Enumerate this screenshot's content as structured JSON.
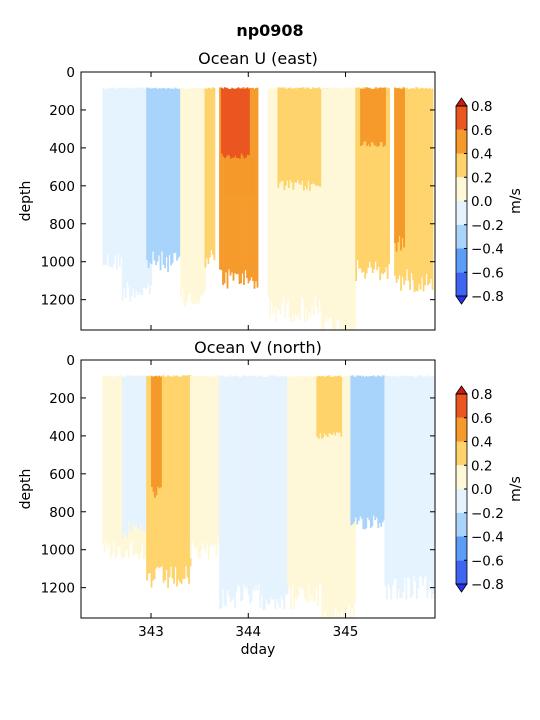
{
  "figure_title": "np0908",
  "chart_data": [
    {
      "type": "heatmap",
      "title": "Ocean U (east)",
      "xlabel": "",
      "ylabel": "depth",
      "xlim": [
        342.28,
        345.92
      ],
      "ylim": [
        1360,
        0
      ],
      "y_inverted": true,
      "xticks": [
        343,
        344,
        345
      ],
      "xticklabels_visible": false,
      "yticks": [
        0,
        200,
        400,
        600,
        800,
        1000,
        1200
      ],
      "colorbar": {
        "label": "m/s",
        "levels": [
          -0.8,
          -0.6,
          -0.4,
          -0.2,
          0.0,
          0.2,
          0.4,
          0.6,
          0.8
        ],
        "ticklabels": [
          "−0.8",
          "−0.6",
          "−0.4",
          "−0.2",
          "0.0",
          "0.2",
          "0.4",
          "0.6",
          "0.8"
        ],
        "extend": "both"
      },
      "sections": [
        {
          "x0": 342.5,
          "x1": 342.7,
          "d0": 80,
          "d1": 1000,
          "v": -0.1
        },
        {
          "x0": 342.7,
          "x1": 343.0,
          "d0": 80,
          "d1": 1150,
          "v": -0.1
        },
        {
          "x0": 342.95,
          "x1": 343.3,
          "d0": 80,
          "d1": 1000,
          "v": -0.3
        },
        {
          "x0": 343.3,
          "x1": 343.55,
          "d0": 80,
          "d1": 1200,
          "v": 0.1
        },
        {
          "x0": 343.55,
          "x1": 343.65,
          "d0": 80,
          "d1": 980,
          "v": 0.3
        },
        {
          "x0": 343.7,
          "x1": 344.1,
          "d0": 80,
          "d1": 1090,
          "v": 0.5
        },
        {
          "x0": 343.72,
          "x1": 344.0,
          "d0": 80,
          "d1": 450,
          "v": 0.7
        },
        {
          "x0": 343.75,
          "x1": 344.05,
          "d0": 450,
          "d1": 650,
          "v": 0.6
        },
        {
          "x0": 344.2,
          "x1": 344.75,
          "d0": 80,
          "d1": 1250,
          "v": 0.1
        },
        {
          "x0": 344.3,
          "x1": 344.9,
          "d0": 80,
          "d1": 600,
          "v": 0.3
        },
        {
          "x0": 344.75,
          "x1": 345.1,
          "d0": 80,
          "d1": 1350,
          "v": 0.1
        },
        {
          "x0": 345.1,
          "x1": 345.45,
          "d0": 80,
          "d1": 1050,
          "v": 0.3
        },
        {
          "x0": 345.15,
          "x1": 345.4,
          "d0": 80,
          "d1": 380,
          "v": 0.5
        },
        {
          "x0": 345.5,
          "x1": 345.9,
          "d0": 80,
          "d1": 1100,
          "v": 0.3
        },
        {
          "x0": 345.5,
          "x1": 345.6,
          "d0": 80,
          "d1": 900,
          "v": 0.5
        }
      ]
    },
    {
      "type": "heatmap",
      "title": "Ocean V (north)",
      "xlabel": "dday",
      "ylabel": "depth",
      "xlim": [
        342.28,
        345.92
      ],
      "ylim": [
        1360,
        0
      ],
      "y_inverted": true,
      "xticks": [
        343,
        344,
        345
      ],
      "xticklabels": [
        "343",
        "344",
        "345"
      ],
      "yticks": [
        0,
        200,
        400,
        600,
        800,
        1000,
        1200
      ],
      "colorbar": {
        "label": "m/s",
        "levels": [
          -0.8,
          -0.6,
          -0.4,
          -0.2,
          0.0,
          0.2,
          0.4,
          0.6,
          0.8
        ],
        "ticklabels": [
          "−0.8",
          "−0.6",
          "−0.4",
          "−0.2",
          "0.0",
          "0.2",
          "0.4",
          "0.6",
          "0.8"
        ],
        "extend": "both"
      },
      "sections": [
        {
          "x0": 342.5,
          "x1": 342.95,
          "d0": 80,
          "d1": 1000,
          "v": 0.1
        },
        {
          "x0": 342.7,
          "x1": 342.95,
          "d0": 80,
          "d1": 900,
          "v": -0.1
        },
        {
          "x0": 342.95,
          "x1": 343.4,
          "d0": 80,
          "d1": 1150,
          "v": 0.3
        },
        {
          "x0": 343.0,
          "x1": 343.1,
          "d0": 80,
          "d1": 700,
          "v": 0.5
        },
        {
          "x0": 343.4,
          "x1": 343.7,
          "d0": 80,
          "d1": 1000,
          "v": 0.1
        },
        {
          "x0": 343.7,
          "x1": 344.1,
          "d0": 80,
          "d1": 1250,
          "v": -0.1
        },
        {
          "x0": 344.1,
          "x1": 344.4,
          "d0": 80,
          "d1": 1250,
          "v": -0.1
        },
        {
          "x0": 344.4,
          "x1": 344.75,
          "d0": 80,
          "d1": 1250,
          "v": 0.1
        },
        {
          "x0": 344.75,
          "x1": 345.1,
          "d0": 80,
          "d1": 1350,
          "v": 0.1
        },
        {
          "x0": 344.7,
          "x1": 344.95,
          "d0": 80,
          "d1": 400,
          "v": 0.3
        },
        {
          "x0": 345.05,
          "x1": 345.4,
          "d0": 80,
          "d1": 850,
          "v": -0.3
        },
        {
          "x0": 345.4,
          "x1": 345.9,
          "d0": 80,
          "d1": 1200,
          "v": -0.1
        }
      ]
    }
  ],
  "palette": {
    "under": "#2e2ef2",
    "bins": [
      "#3d65f2",
      "#5c9cf7",
      "#a8d4fb",
      "#e5f3fe",
      "#fff8d8",
      "#ffd36b",
      "#f59a2a",
      "#ea5520"
    ],
    "over": "#cf1a0e"
  }
}
